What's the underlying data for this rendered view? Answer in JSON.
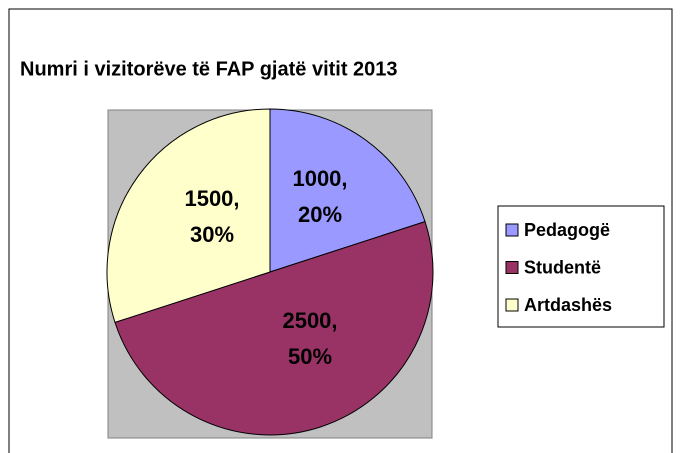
{
  "chart_data": {
    "type": "pie",
    "title": "Numri i vizitorëve të FAP gjatë vitit 2013",
    "categories": [
      "Pedagogë",
      "Studentë",
      "Artdashës"
    ],
    "values": [
      1000,
      2500,
      1500
    ],
    "value_labels": [
      "1000,",
      "2500,",
      "1500,"
    ],
    "percent_labels": [
      "20%",
      "50%",
      "30%"
    ],
    "colors": [
      "#9999ff",
      "#993366",
      "#ffffcc"
    ],
    "legend": "right"
  }
}
